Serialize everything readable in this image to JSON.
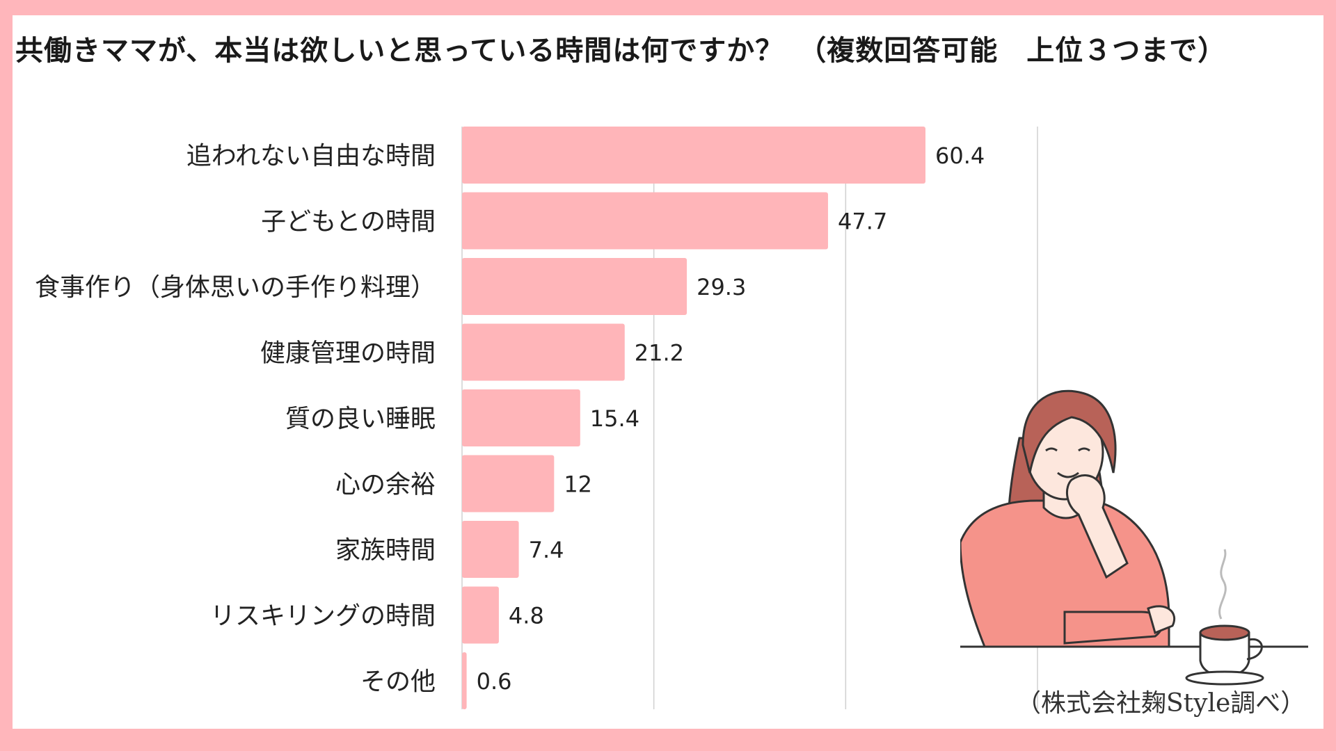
{
  "title": "共働きママが、本当は欲しいと思っている時間は何ですか？　（複数回答可能　上位３つまで）",
  "source": "（株式会社麹Style調べ）",
  "colors": {
    "bar": "#ffb5b9",
    "frame": "#ffb6bb",
    "grid": "#d0d0d0"
  },
  "chart_data": {
    "type": "bar",
    "orientation": "horizontal",
    "title": "共働きママが、本当は欲しいと思っている時間は何ですか？　（複数回答可能　上位３つまで）",
    "categories": [
      "追われない自由な時間",
      "子どもとの時間",
      "食事作り（身体思いの手作り料理）",
      "健康管理の時間",
      "質の良い睡眠",
      "心の余裕",
      "家族時間",
      "リスキリングの時間",
      "その他"
    ],
    "values": [
      60.4,
      47.7,
      29.3,
      21.2,
      15.4,
      12,
      7.4,
      4.8,
      0.6
    ],
    "value_labels": [
      "60.4",
      "47.7",
      "29.3",
      "21.2",
      "15.4",
      "12",
      "7.4",
      "4.8",
      "0.6"
    ],
    "xlim": [
      0,
      75
    ],
    "grid": true,
    "legend": "none"
  }
}
